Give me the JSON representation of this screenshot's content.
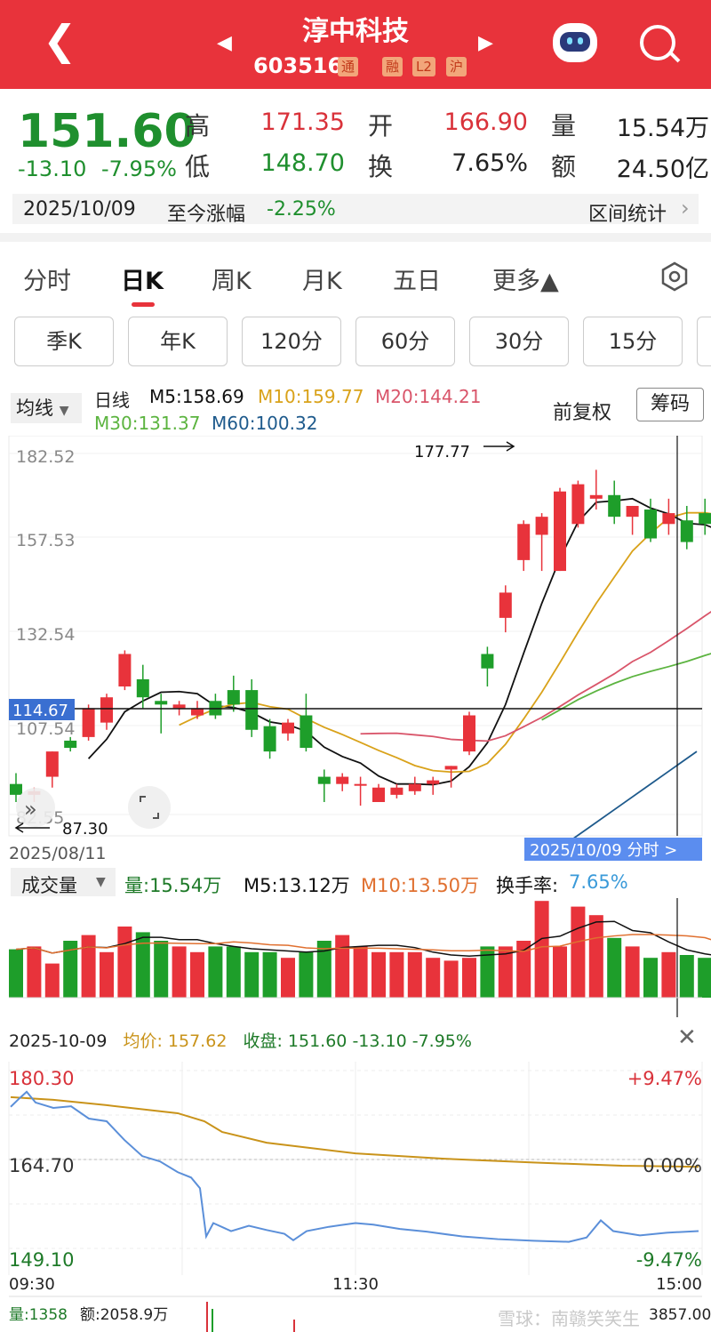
{
  "header": {
    "title": "淳中科技",
    "code": "603516",
    "tags": [
      "通",
      "融",
      "L2",
      "沪"
    ],
    "back_icon": "chevron-left-icon",
    "robot_icon": "robot-icon",
    "search_icon": "search-icon"
  },
  "quote": {
    "price": "151.60",
    "change": "-13.10",
    "change_pct": "-7.95%",
    "high_label": "高",
    "high": "171.35",
    "low_label": "低",
    "low": "148.70",
    "open_label": "开",
    "open": "166.90",
    "turnover_label": "换",
    "turnover": "7.65%",
    "volume_label": "量",
    "volume": "15.54万",
    "amount_label": "额",
    "amount": "24.50亿",
    "date": "2025/10/09",
    "since_label": "至今涨幅",
    "since_value": "-2.25%",
    "range_stats": "区间统计"
  },
  "tabs": {
    "items": [
      "分时",
      "日K",
      "周K",
      "月K",
      "五日",
      "更多▲"
    ],
    "active": "日K"
  },
  "periods": [
    "季K",
    "年K",
    "120分",
    "60分",
    "30分",
    "15分"
  ],
  "kline": {
    "ma_chip": "均线",
    "period_label": "日线",
    "m5": "M5:158.69",
    "m10": "M10:159.77",
    "m20": "M20:144.21",
    "m30": "M30:131.37",
    "m60": "M60:100.32",
    "adjust": "前复权",
    "chips_button": "筹码",
    "axis": [
      "182.52",
      "157.53",
      "132.54",
      "107.54",
      "82.55"
    ],
    "crosshair_price": "114.67",
    "max_label": "177.77",
    "min_label": "87.30",
    "start_date": "2025/08/11",
    "end_date_tag": "2025/10/09 分时 >",
    "colors": {
      "up": "#e8333b",
      "down": "#1e9e2a",
      "m5": "#111111",
      "m10": "#d9a21a",
      "m20": "#d9556a",
      "m30": "#5cb440",
      "m60": "#1e5a8c"
    }
  },
  "volume": {
    "label": "成交量",
    "vol": "量:15.54万",
    "m5": "M5:13.12万",
    "m10": "M10:13.50万",
    "turnover_label": "换手率:",
    "turnover_value": "7.65%"
  },
  "intraday": {
    "date": "2025-10-09",
    "avg_label": "均价:",
    "avg": "157.62",
    "close_label": "收盘:",
    "close": "151.60",
    "close_change": "-13.10",
    "close_pct": "-7.95%",
    "close_icon": "close-icon",
    "ymax": "180.30",
    "ymid": "164.70",
    "ymin": "149.10",
    "pct_max": "+9.47%",
    "pct_mid": "0.00%",
    "pct_min": "-9.47%",
    "t_start": "09:30",
    "t_mid": "11:30",
    "t_end": "15:00",
    "vol_line": "量:1358",
    "amt_line": "额:2058.9万",
    "vol_max": "3857.00",
    "watermark": "雪球：南赣笑笑生"
  }
}
